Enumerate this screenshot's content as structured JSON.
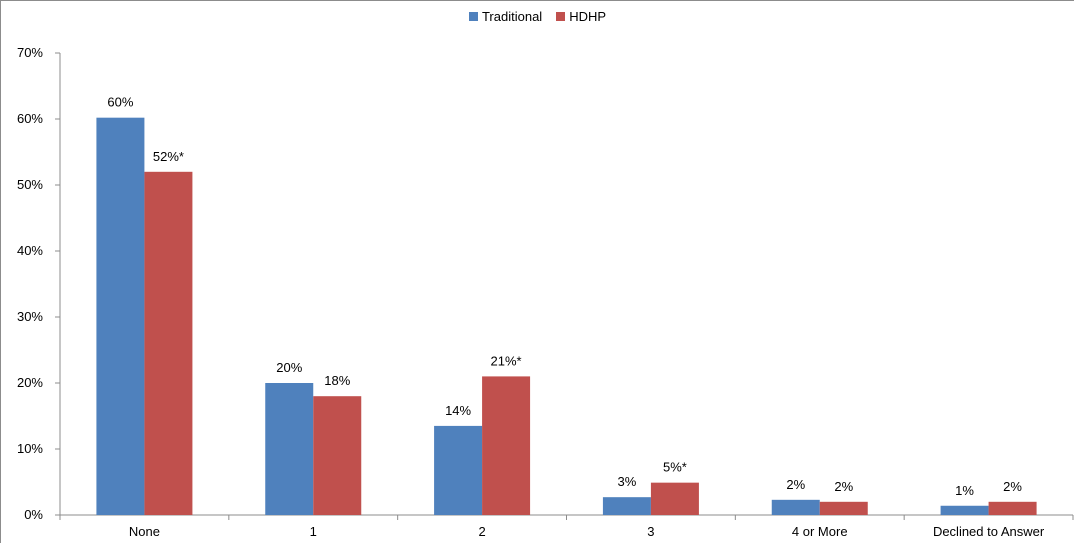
{
  "chart_data": {
    "type": "bar",
    "categories": [
      "None",
      "1",
      "2",
      "3",
      "4 or More",
      "Declined to Answer"
    ],
    "series": [
      {
        "name": "Traditional",
        "color": "#4F81BD",
        "values": [
          60.2,
          20.0,
          13.5,
          2.7,
          2.3,
          1.4
        ],
        "labels": [
          "60%",
          "20%",
          "14%",
          "3%",
          "2%",
          "1%"
        ]
      },
      {
        "name": "HDHP",
        "color": "#C0504D",
        "values": [
          52.0,
          18.0,
          21.0,
          4.9,
          2.0,
          2.0
        ],
        "labels": [
          "52%*",
          "18%",
          "21%*",
          "5%*",
          "2%",
          "2%"
        ]
      }
    ],
    "ylim": [
      0,
      70
    ],
    "yticks": [
      0,
      10,
      20,
      30,
      40,
      50,
      60,
      70
    ],
    "ytick_labels": [
      "0%",
      "10%",
      "20%",
      "30%",
      "40%",
      "50%",
      "60%",
      "70%"
    ],
    "legend_position": "top-center",
    "grid": false
  }
}
